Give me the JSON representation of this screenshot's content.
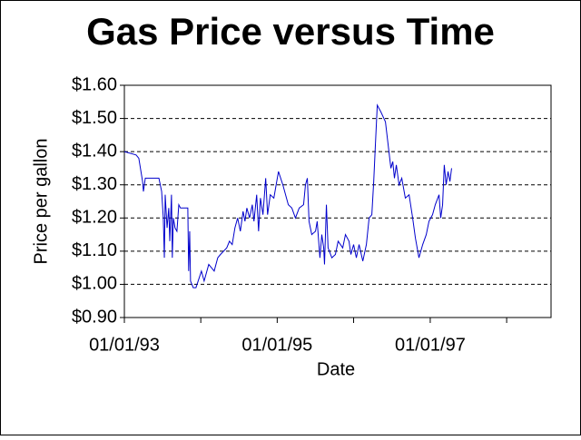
{
  "chart_data": {
    "type": "line",
    "title": "Gas Price versus Time",
    "x_label": "Date",
    "y_label": "Price per gallon",
    "x": [
      "1993-01-01",
      "1993-02-26",
      "1993-03-11",
      "1993-03-29",
      "1993-04-02",
      "1993-04-11",
      "1993-06-15",
      "1993-06-28",
      "1993-07-06",
      "1993-07-11",
      "1993-07-15",
      "1993-07-24",
      "1993-08-01",
      "1993-08-06",
      "1993-08-14",
      "1993-08-18",
      "1993-08-23",
      "1993-08-31",
      "1993-09-09",
      "1993-09-18",
      "1993-09-26",
      "1993-10-31",
      "1993-11-04",
      "1993-11-09",
      "1993-11-13",
      "1993-11-26",
      "1993-12-09",
      "1994-01-04",
      "1994-01-17",
      "1994-02-08",
      "1994-03-06",
      "1994-03-23",
      "1994-04-05",
      "1994-05-05",
      "1994-05-18",
      "1994-05-31",
      "1994-06-13",
      "1994-06-26",
      "1994-07-09",
      "1994-07-22",
      "1994-07-31",
      "1994-08-09",
      "1994-08-22",
      "1994-09-04",
      "1994-09-12",
      "1994-09-25",
      "1994-10-04",
      "1994-10-13",
      "1994-10-25",
      "1994-11-07",
      "1994-11-16",
      "1994-11-29",
      "1994-12-16",
      "1995-01-07",
      "1995-01-28",
      "1995-02-23",
      "1995-03-12",
      "1995-03-29",
      "1995-04-16",
      "1995-05-07",
      "1995-05-16",
      "1995-05-25",
      "1995-06-02",
      "1995-06-15",
      "1995-07-03",
      "1995-07-11",
      "1995-07-24",
      "1995-08-02",
      "1995-08-11",
      "1995-08-15",
      "1995-08-24",
      "1995-09-01",
      "1995-09-19",
      "1995-10-06",
      "1995-10-19",
      "1995-11-10",
      "1995-11-23",
      "1995-12-10",
      "1995-12-19",
      "1996-01-01",
      "1996-01-14",
      "1996-01-27",
      "1996-02-14",
      "1996-03-02",
      "1996-03-15",
      "1996-03-28",
      "1996-04-06",
      "1996-04-14",
      "1996-04-23",
      "1996-05-10",
      "1996-06-01",
      "1996-06-14",
      "1996-06-27",
      "1996-07-06",
      "1996-07-14",
      "1996-07-23",
      "1996-08-05",
      "1996-08-18",
      "1996-09-04",
      "1996-09-22",
      "1996-10-09",
      "1996-10-22",
      "1996-11-08",
      "1996-11-26",
      "1996-12-13",
      "1996-12-26",
      "1997-01-12",
      "1997-01-25",
      "1997-02-12",
      "1997-02-20",
      "1997-03-01",
      "1997-03-09",
      "1997-03-18",
      "1997-03-27",
      "1997-04-05",
      "1997-04-13"
    ],
    "series": [
      {
        "color": "#0000cc",
        "values": [
          1.4,
          1.39,
          1.38,
          1.31,
          1.28,
          1.32,
          1.32,
          1.28,
          1.2,
          1.08,
          1.27,
          1.17,
          1.23,
          1.13,
          1.27,
          1.08,
          1.2,
          1.17,
          1.16,
          1.24,
          1.23,
          1.23,
          1.04,
          1.16,
          1.01,
          0.99,
          0.99,
          1.04,
          1.01,
          1.06,
          1.04,
          1.08,
          1.09,
          1.11,
          1.13,
          1.12,
          1.17,
          1.2,
          1.16,
          1.22,
          1.19,
          1.23,
          1.2,
          1.24,
          1.19,
          1.27,
          1.16,
          1.26,
          1.21,
          1.32,
          1.21,
          1.27,
          1.26,
          1.34,
          1.3,
          1.24,
          1.23,
          1.2,
          1.23,
          1.24,
          1.3,
          1.32,
          1.19,
          1.15,
          1.16,
          1.19,
          1.08,
          1.15,
          1.11,
          1.06,
          1.24,
          1.11,
          1.08,
          1.09,
          1.13,
          1.11,
          1.15,
          1.13,
          1.09,
          1.12,
          1.08,
          1.12,
          1.07,
          1.12,
          1.2,
          1.21,
          1.31,
          1.42,
          1.54,
          1.52,
          1.49,
          1.42,
          1.35,
          1.37,
          1.32,
          1.36,
          1.3,
          1.32,
          1.26,
          1.27,
          1.2,
          1.14,
          1.08,
          1.12,
          1.15,
          1.19,
          1.21,
          1.24,
          1.27,
          1.2,
          1.24,
          1.36,
          1.3,
          1.34,
          1.31,
          1.35
        ]
      }
    ],
    "xlim": [
      "1993-01-01",
      "1998-08-01"
    ],
    "xticks": [
      {
        "value": "1993-01-01",
        "label": "01/01/93"
      },
      {
        "value": "1994-01-01",
        "label": null
      },
      {
        "value": "1995-01-01",
        "label": "01/01/95"
      },
      {
        "value": "1996-01-01",
        "label": null
      },
      {
        "value": "1997-01-01",
        "label": "01/01/97"
      },
      {
        "value": "1998-01-01",
        "label": null
      }
    ],
    "ylim": [
      0.9,
      1.6
    ],
    "yticks": [
      {
        "value": 0.9,
        "label": "$0.90"
      },
      {
        "value": 1.0,
        "label": "$1.00"
      },
      {
        "value": 1.1,
        "label": "$1.10"
      },
      {
        "value": 1.2,
        "label": "$1.20"
      },
      {
        "value": 1.3,
        "label": "$1.30"
      },
      {
        "value": 1.4,
        "label": "$1.40"
      },
      {
        "value": 1.5,
        "label": "$1.50"
      },
      {
        "value": 1.6,
        "label": "$1.60"
      }
    ],
    "grid": true
  }
}
